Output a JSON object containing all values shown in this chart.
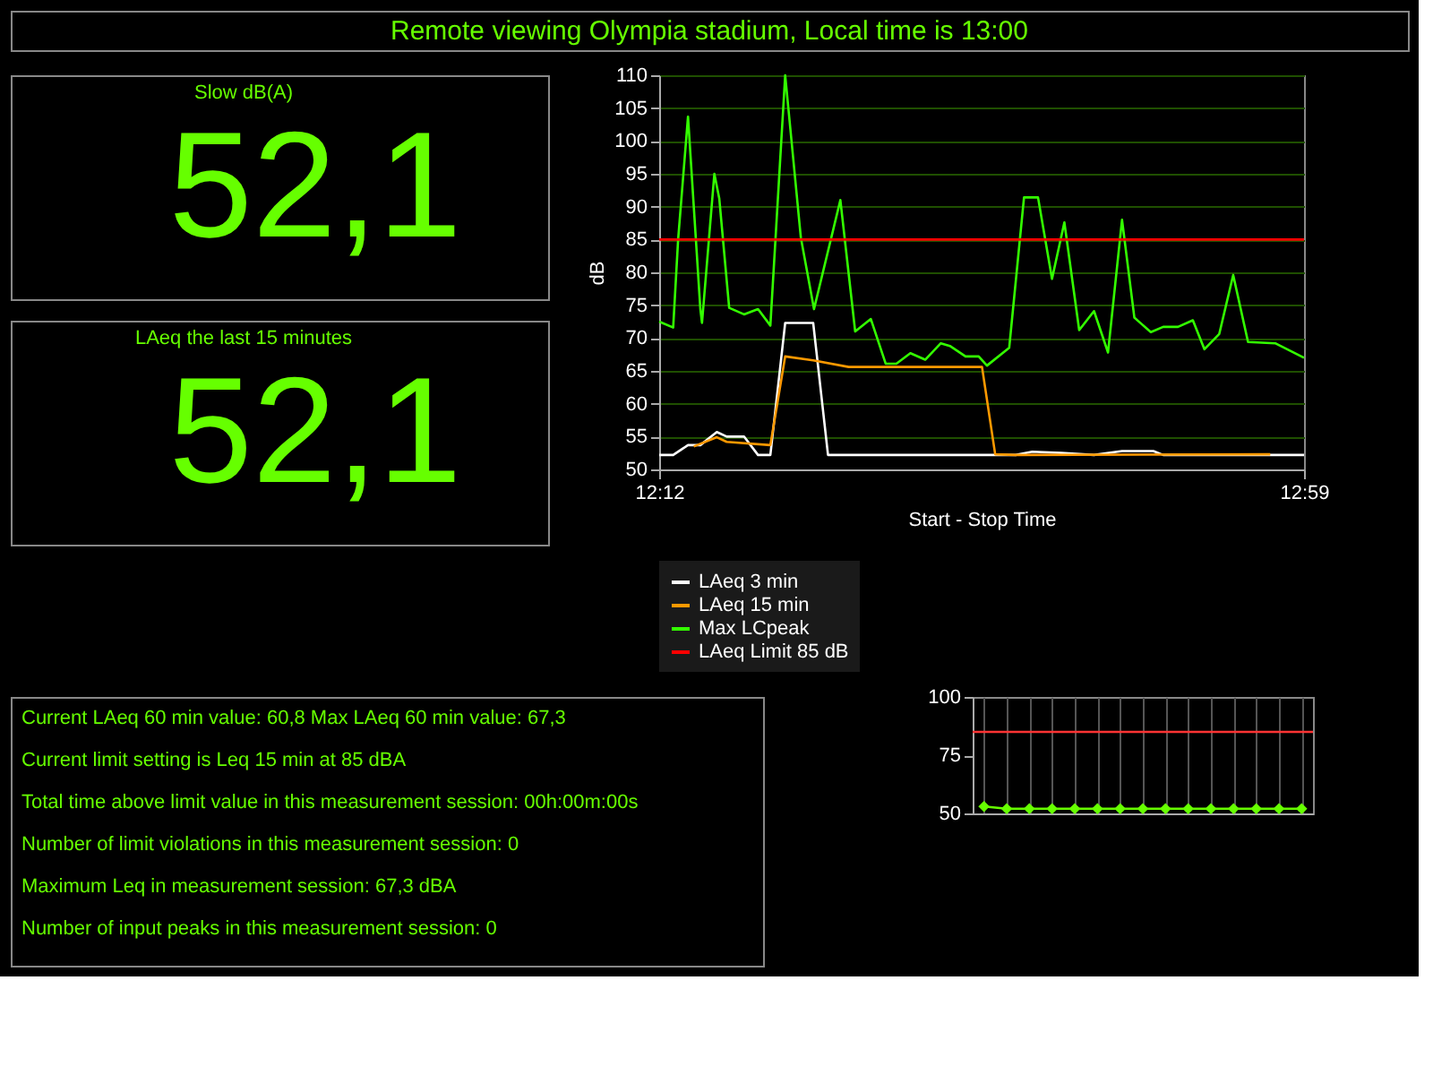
{
  "chart_data": [
    {
      "type": "other",
      "title": "Remote viewing Olympia stadium, Local time is 13:00"
    },
    {
      "type": "other",
      "title": "Slow dB(A)",
      "annotations": [
        "52,1"
      ]
    },
    {
      "type": "other",
      "title": "LAeq the last 15 minutes",
      "annotations": [
        "52,1"
      ]
    },
    {
      "type": "line",
      "xlabel": "Start - Stop Time",
      "ylabel": "dB",
      "xlim": [
        12.2,
        12.983
      ],
      "xticks": [
        {
          "value": 12.2,
          "label": "12:12"
        },
        {
          "value": 12.983,
          "label": "12:59"
        }
      ],
      "ylim": [
        50,
        110
      ],
      "yticks": [
        50,
        55,
        60,
        65,
        70,
        75,
        80,
        85,
        90,
        95,
        100,
        105,
        110
      ],
      "grid": "y",
      "legend": "bottom",
      "line_style": "solid",
      "marker": "none",
      "series": [
        {
          "name": "LAeq 3 min",
          "color": "#ffffff",
          "x": [
            12.2,
            12.217,
            12.235,
            12.25,
            12.27,
            12.282,
            12.303,
            12.32,
            12.335,
            12.353,
            12.387,
            12.405,
            12.633,
            12.653,
            12.688,
            12.728,
            12.762,
            12.8,
            12.812,
            12.983
          ],
          "values": [
            52.2,
            52.2,
            53.7,
            53.7,
            55.7,
            55,
            55,
            52.2,
            52.2,
            72.3,
            72.3,
            52.2,
            52.2,
            52.7,
            52.5,
            52.2,
            52.8,
            52.8,
            52.2,
            52.2
          ]
        },
        {
          "name": "LAeq 15 min",
          "color": "#ff9900",
          "x": [
            12.242,
            12.27,
            12.282,
            12.335,
            12.353,
            12.387,
            12.43,
            12.592,
            12.608,
            12.633,
            12.942
          ],
          "values": [
            53.5,
            54.9,
            54.2,
            53.7,
            67.2,
            66.6,
            65.6,
            65.6,
            52.3,
            52.2,
            52.3
          ]
        },
        {
          "name": "Max LCpeak",
          "color": "#33ff00",
          "x": [
            12.2,
            12.217,
            12.223,
            12.235,
            12.25,
            12.252,
            12.267,
            12.273,
            12.285,
            12.303,
            12.32,
            12.335,
            12.353,
            12.372,
            12.388,
            12.42,
            12.438,
            12.457,
            12.475,
            12.488,
            12.505,
            12.523,
            12.542,
            12.553,
            12.572,
            12.588,
            12.598,
            12.625,
            12.643,
            12.66,
            12.677,
            12.692,
            12.71,
            12.728,
            12.745,
            12.762,
            12.777,
            12.797,
            12.812,
            12.83,
            12.848,
            12.862,
            12.88,
            12.897,
            12.915,
            12.948,
            12.983
          ],
          "values": [
            72.5,
            71.6,
            85,
            103.7,
            74.4,
            72.3,
            95,
            91.2,
            74.6,
            73.6,
            74.4,
            71.9,
            110,
            85.3,
            74.4,
            91,
            71,
            72.9,
            66.1,
            66.1,
            67.7,
            66.7,
            69.2,
            68.8,
            67.2,
            67.2,
            65.8,
            68.5,
            91.4,
            91.4,
            79,
            87.6,
            71.2,
            74.1,
            67.8,
            88,
            73.1,
            70.9,
            71.7,
            71.7,
            72.7,
            68.3,
            70.6,
            79.6,
            69.4,
            69.2,
            67
          ]
        },
        {
          "name": "LAeq Limit 85 dB",
          "color": "#ff0000",
          "x": [
            12.2,
            12.983
          ],
          "values": [
            85,
            85
          ]
        }
      ]
    },
    {
      "type": "other",
      "annotations": [
        "Current LAeq 60 min value: 60,8   Max LAeq 60 min value: 67,3",
        "Current limit setting is Leq 15 min at 85 dBA",
        "Total time above limit value in this measurement session: 00h:00m:00s",
        "Number of limit violations in this measurement session: 0",
        "Maximum Leq in measurement session: 67,3 dBA",
        "Number of input peaks in this measurement session: 0"
      ]
    },
    {
      "type": "line",
      "categories": [
        null,
        null,
        null,
        null,
        null,
        null,
        null,
        null,
        null,
        null,
        null,
        null,
        null,
        null,
        null
      ],
      "ylim": [
        50,
        100
      ],
      "yticks": [
        50,
        75,
        100
      ],
      "grid": "x",
      "tick_labels": "y",
      "marker": "diamond",
      "line_style": "solid",
      "series": [
        {
          "color": "#66ff00",
          "values": [
            53,
            52,
            52,
            52,
            52,
            52,
            52,
            52,
            52,
            52,
            52,
            52,
            52,
            52,
            52
          ]
        }
      ],
      "ref_lines": [
        {
          "axis": "y",
          "value": 85,
          "color": "#ff3333"
        }
      ]
    }
  ]
}
